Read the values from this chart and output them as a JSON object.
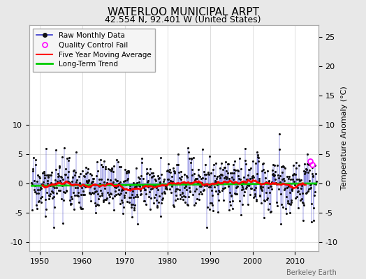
{
  "title": "WATERLOO MUNICIPAL ARPT",
  "subtitle": "42.554 N, 92.401 W (United States)",
  "ylabel": "Temperature Anomaly (°C)",
  "xlabel_ticks": [
    1950,
    1960,
    1970,
    1980,
    1990,
    2000,
    2010
  ],
  "yticks_left": [
    -10,
    -5,
    0,
    5,
    10
  ],
  "yticks_right": [
    -10,
    -5,
    0,
    5,
    10,
    15,
    20,
    25
  ],
  "ylim": [
    -11.5,
    27
  ],
  "xlim": [
    1947.5,
    2015.5
  ],
  "background_color": "#e8e8e8",
  "plot_bg_color": "#ffffff",
  "raw_line_color": "#3333cc",
  "raw_marker_color": "#111111",
  "moving_avg_color": "#ff0000",
  "trend_color": "#00cc00",
  "qc_fail_color": "#ff00ff",
  "watermark": "Berkeley Earth",
  "seed": 17,
  "start_year": 1948.083,
  "n_months": 804,
  "noise_std": 2.3,
  "trend_slope": 0.008,
  "trend_intercept": -0.5,
  "moving_avg_window": 60,
  "qc_times": [
    2013.5,
    2014.0
  ],
  "qc_vals": [
    3.8,
    3.2
  ],
  "title_fontsize": 11,
  "subtitle_fontsize": 9,
  "tick_fontsize": 8,
  "legend_fontsize": 7.5,
  "ylabel_fontsize": 8
}
